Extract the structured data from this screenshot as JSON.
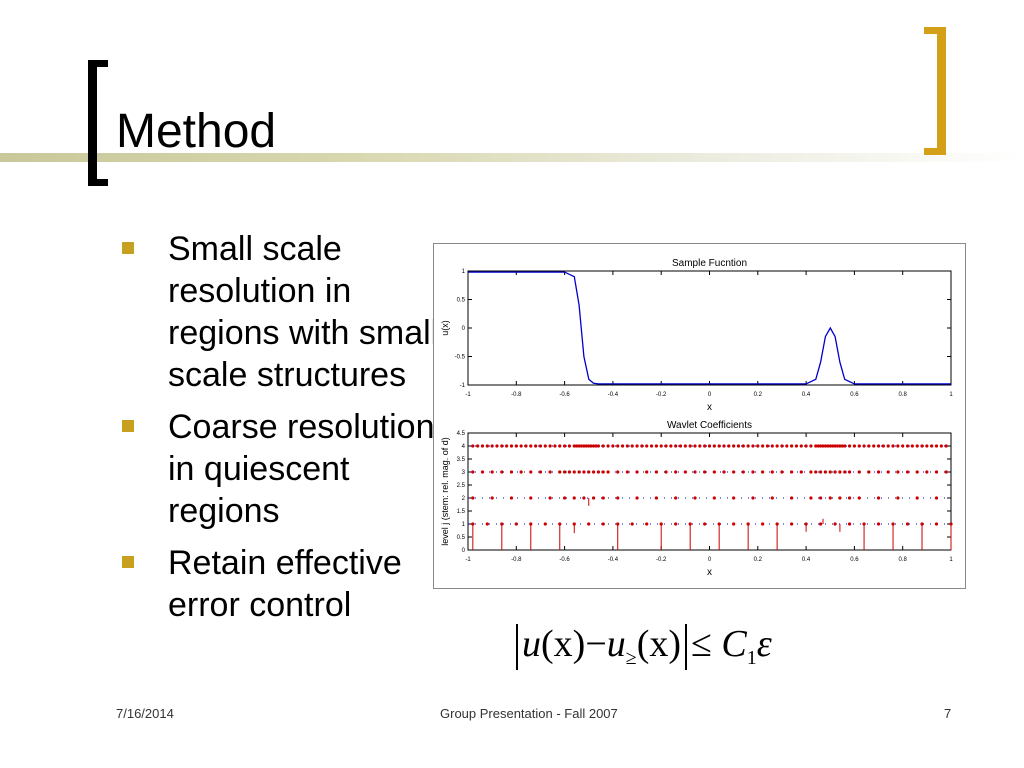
{
  "slide": {
    "title": "Method",
    "bullets": [
      "Small scale resolution in regions with small scale structures",
      "Coarse resolution in quiescent regions",
      "Retain effective error control"
    ],
    "footer": {
      "date": "7/16/2014",
      "center": "Group Presentation - Fall 2007",
      "page": "7"
    },
    "equation": {
      "lhs_u": "u",
      "lhs_x": "(x)",
      "minus": "−",
      "rhs_u": "u",
      "rhs_sub": "≥",
      "rhs_x": "(x)",
      "leq": "≤",
      "C": "C",
      "C_sub": "1",
      "eps": "ε"
    },
    "colors": {
      "bullet_marker": "#c8a020",
      "bracket_right": "#d4a017",
      "curve": "#0000cc",
      "stems": "#cc0000",
      "dotted": "#0000cc"
    }
  },
  "chart_data": [
    {
      "type": "line",
      "title": "Sample Fucntion",
      "xlabel": "x",
      "ylabel": "u(x)",
      "xlim": [
        -1,
        1
      ],
      "ylim": [
        -1,
        1
      ],
      "xticks": [
        "-1",
        "-0.8",
        "-0.6",
        "-0.4",
        "-0.2",
        "0",
        "0.2",
        "0.4",
        "0.6",
        "0.8",
        "1"
      ],
      "yticks": [
        "-1",
        "-0.5",
        "0",
        "0.5",
        "1"
      ],
      "x": [
        -1,
        -0.6,
        -0.56,
        -0.54,
        -0.52,
        -0.5,
        -0.48,
        -0.46,
        -0.2,
        0.4,
        0.44,
        0.46,
        0.48,
        0.5,
        0.52,
        0.54,
        0.56,
        0.6,
        1
      ],
      "y": [
        0.98,
        0.98,
        0.9,
        0.4,
        -0.5,
        -0.9,
        -0.97,
        -0.98,
        -0.98,
        -0.98,
        -0.9,
        -0.6,
        -0.15,
        0.0,
        -0.15,
        -0.6,
        -0.9,
        -0.98,
        -0.98
      ]
    },
    {
      "type": "scatter",
      "title": "Wavlet Coefficients",
      "xlabel": "x",
      "ylabel": "level j (stem: rel. mag. of d)",
      "xlim": [
        -1,
        1
      ],
      "ylim": [
        0,
        4.5
      ],
      "xticks": [
        "-1",
        "-0.8",
        "-0.6",
        "-0.4",
        "-0.2",
        "0",
        "0.2",
        "0.4",
        "0.6",
        "0.8",
        "1"
      ],
      "yticks": [
        "0",
        "0.5",
        "1",
        "1.5",
        "2",
        "2.5",
        "3",
        "3.5",
        "4",
        "4.5"
      ],
      "levels": [
        {
          "level": 1,
          "x": [
            -0.98,
            -0.92,
            -0.86,
            -0.8,
            -0.74,
            -0.68,
            -0.62,
            -0.56,
            -0.5,
            -0.44,
            -0.38,
            -0.32,
            -0.26,
            -0.2,
            -0.14,
            -0.08,
            -0.02,
            0.04,
            0.1,
            0.16,
            0.22,
            0.28,
            0.34,
            0.4,
            0.46,
            0.52,
            0.58,
            0.64,
            0.7,
            0.76,
            0.82,
            0.88,
            0.94,
            1.0
          ]
        },
        {
          "level": 2,
          "x": [
            -0.98,
            -0.9,
            -0.82,
            -0.74,
            -0.66,
            -0.6,
            -0.56,
            -0.52,
            -0.48,
            -0.44,
            -0.38,
            -0.3,
            -0.22,
            -0.14,
            -0.06,
            0.02,
            0.1,
            0.18,
            0.26,
            0.34,
            0.42,
            0.46,
            0.5,
            0.54,
            0.58,
            0.62,
            0.7,
            0.78,
            0.86,
            0.94
          ]
        },
        {
          "level": 3,
          "x": [
            -0.98,
            -0.94,
            -0.9,
            -0.86,
            -0.82,
            -0.78,
            -0.74,
            -0.7,
            -0.66,
            -0.62,
            -0.6,
            -0.58,
            -0.56,
            -0.54,
            -0.52,
            -0.5,
            -0.48,
            -0.46,
            -0.44,
            -0.42,
            -0.38,
            -0.34,
            -0.3,
            -0.26,
            -0.22,
            -0.18,
            -0.14,
            -0.1,
            -0.06,
            -0.02,
            0.02,
            0.06,
            0.1,
            0.14,
            0.18,
            0.22,
            0.26,
            0.3,
            0.34,
            0.38,
            0.42,
            0.44,
            0.46,
            0.48,
            0.5,
            0.52,
            0.54,
            0.56,
            0.58,
            0.62,
            0.66,
            0.7,
            0.74,
            0.78,
            0.82,
            0.86,
            0.9,
            0.94,
            0.98
          ]
        },
        {
          "level": 4,
          "x": [
            -0.98,
            -0.96,
            -0.94,
            -0.92,
            -0.9,
            -0.88,
            -0.86,
            -0.84,
            -0.82,
            -0.8,
            -0.78,
            -0.76,
            -0.74,
            -0.72,
            -0.7,
            -0.68,
            -0.66,
            -0.64,
            -0.62,
            -0.6,
            -0.58,
            -0.56,
            -0.55,
            -0.54,
            -0.53,
            -0.52,
            -0.51,
            -0.5,
            -0.49,
            -0.48,
            -0.47,
            -0.46,
            -0.44,
            -0.42,
            -0.4,
            -0.38,
            -0.36,
            -0.34,
            -0.32,
            -0.3,
            -0.28,
            -0.26,
            -0.24,
            -0.22,
            -0.2,
            -0.18,
            -0.16,
            -0.14,
            -0.12,
            -0.1,
            -0.08,
            -0.06,
            -0.04,
            -0.02,
            0.0,
            0.02,
            0.04,
            0.06,
            0.08,
            0.1,
            0.12,
            0.14,
            0.16,
            0.18,
            0.2,
            0.22,
            0.24,
            0.26,
            0.28,
            0.3,
            0.32,
            0.34,
            0.36,
            0.38,
            0.4,
            0.42,
            0.44,
            0.45,
            0.46,
            0.47,
            0.48,
            0.49,
            0.5,
            0.51,
            0.52,
            0.53,
            0.54,
            0.55,
            0.56,
            0.58,
            0.6,
            0.62,
            0.64,
            0.66,
            0.68,
            0.7,
            0.72,
            0.74,
            0.76,
            0.78,
            0.8,
            0.82,
            0.84,
            0.86,
            0.88,
            0.9,
            0.92,
            0.94,
            0.96,
            0.98
          ]
        }
      ],
      "stems": [
        {
          "x": -0.98,
          "level": 1,
          "mag": 1.0
        },
        {
          "x": -0.86,
          "level": 1,
          "mag": 1.0
        },
        {
          "x": -0.74,
          "level": 1,
          "mag": 1.0
        },
        {
          "x": -0.62,
          "level": 1,
          "mag": 1.0
        },
        {
          "x": -0.55,
          "level": 1,
          "mag": 0.0
        },
        {
          "x": -0.5,
          "level": 2,
          "mag": 0.3
        },
        {
          "x": -0.56,
          "level": 1,
          "mag": 0.35
        },
        {
          "x": -0.38,
          "level": 1,
          "mag": 1.0
        },
        {
          "x": -0.2,
          "level": 1,
          "mag": 1.0
        },
        {
          "x": -0.08,
          "level": 1,
          "mag": 1.0
        },
        {
          "x": 0.04,
          "level": 1,
          "mag": 1.0
        },
        {
          "x": 0.16,
          "level": 1,
          "mag": 1.0
        },
        {
          "x": 0.28,
          "level": 1,
          "mag": 1.0
        },
        {
          "x": 0.4,
          "level": 1,
          "mag": 0.3
        },
        {
          "x": 0.47,
          "level": 1,
          "mag": -0.2
        },
        {
          "x": 0.54,
          "level": 1,
          "mag": 0.3
        },
        {
          "x": 0.64,
          "level": 1,
          "mag": 1.0
        },
        {
          "x": 0.76,
          "level": 1,
          "mag": 1.0
        },
        {
          "x": 0.88,
          "level": 1,
          "mag": 1.0
        },
        {
          "x": 1.0,
          "level": 1,
          "mag": 1.0
        }
      ]
    }
  ]
}
